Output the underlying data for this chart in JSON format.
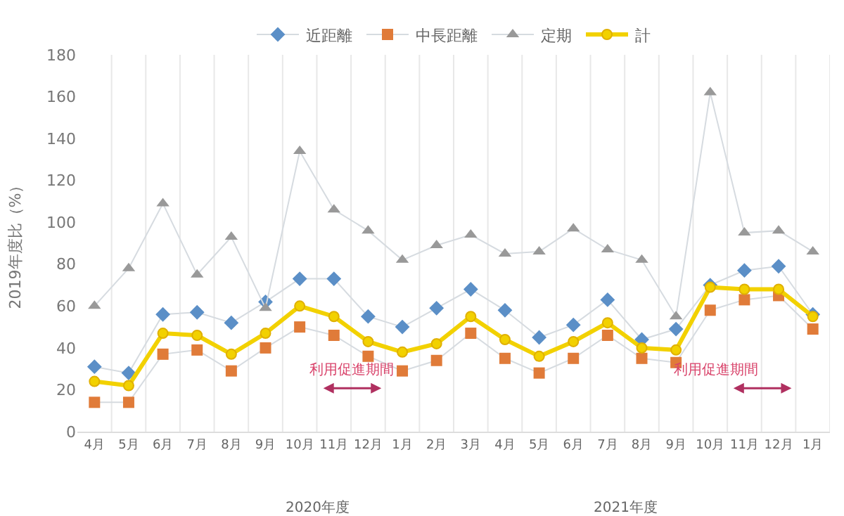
{
  "chart_data": {
    "type": "line",
    "categories": [
      "4月",
      "5月",
      "6月",
      "7月",
      "8月",
      "9月",
      "10月",
      "11月",
      "12月",
      "1月",
      "2月",
      "3月",
      "4月",
      "5月",
      "6月",
      "7月",
      "8月",
      "9月",
      "10月",
      "11月",
      "12月",
      "1月"
    ],
    "ylabel": "2019年度比（%）",
    "ylim": [
      0,
      180
    ],
    "yticks": [
      0,
      20,
      40,
      60,
      80,
      100,
      120,
      140,
      160,
      180
    ],
    "grid": "x",
    "legend": "top",
    "series": [
      {
        "name": "近距離",
        "color": "#5b8fc7",
        "marker": "diamond",
        "values": [
          31,
          28,
          56,
          57,
          52,
          62,
          73,
          73,
          55,
          50,
          59,
          68,
          58,
          45,
          51,
          63,
          44,
          49,
          70,
          77,
          79,
          56
        ]
      },
      {
        "name": "中長距離",
        "color": "#e07b39",
        "marker": "square",
        "values": [
          14,
          14,
          37,
          39,
          29,
          40,
          50,
          46,
          36,
          29,
          34,
          47,
          35,
          28,
          35,
          46,
          35,
          33,
          58,
          63,
          65,
          49
        ]
      },
      {
        "name": "定期",
        "color": "#999999",
        "marker": "triangle",
        "values": [
          60,
          78,
          109,
          75,
          93,
          59,
          134,
          106,
          96,
          82,
          89,
          94,
          85,
          86,
          97,
          87,
          82,
          55,
          162,
          95,
          96,
          86
        ]
      },
      {
        "name": "計",
        "color": "#f2d100",
        "marker": "circle",
        "values": [
          24,
          22,
          47,
          46,
          37,
          47,
          60,
          55,
          43,
          38,
          42,
          55,
          44,
          36,
          43,
          52,
          40,
          39,
          69,
          68,
          68,
          55
        ]
      }
    ],
    "annotations": [
      "利用促進期間",
      "利用促進期間",
      "2020年度",
      "2021年度"
    ]
  }
}
